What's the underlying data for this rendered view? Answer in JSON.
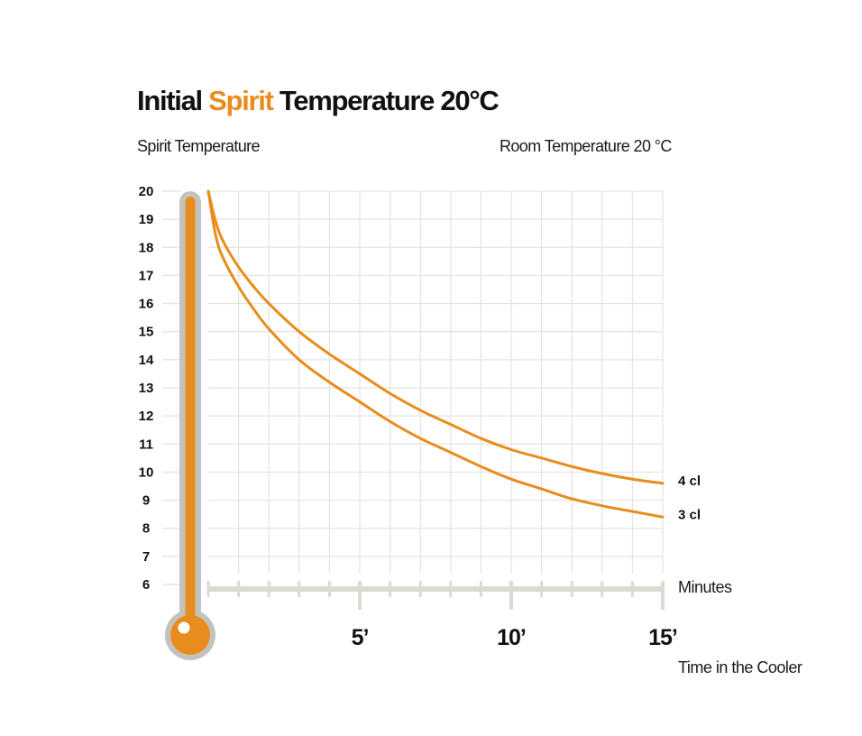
{
  "title": {
    "part1": "Initial ",
    "accent": "Spirit",
    "part2": " Temperature 20°C"
  },
  "header": {
    "left": "Spirit Temperature",
    "right": "Room Temperature 20 °C"
  },
  "colors": {
    "accent": "#e98c1e",
    "grid": "#e6e3dc",
    "axis": "#ddd9d3",
    "thermometer_tube": "#c4c2bf"
  },
  "chart_data": {
    "type": "line",
    "xlabel": "Time in the Cooler",
    "x_axis_unit": "Minutes",
    "ylabel": "Spirit Temperature",
    "reference_line": "Room Temperature 20 °C",
    "xlim": [
      0,
      15
    ],
    "ylim": [
      6,
      20
    ],
    "x_ticks": [
      {
        "value": 5,
        "label": "5’"
      },
      {
        "value": 10,
        "label": "10’"
      },
      {
        "value": 15,
        "label": "15’"
      }
    ],
    "y_ticks": [
      20,
      19,
      18,
      17,
      16,
      15,
      14,
      13,
      12,
      11,
      10,
      9,
      8,
      7,
      6
    ],
    "grid": true,
    "series": [
      {
        "name": "4 cl",
        "x": [
          0,
          0.25,
          0.5,
          1,
          1.5,
          2,
          3,
          4,
          5,
          6,
          7,
          8,
          9,
          10,
          11,
          12,
          13,
          14,
          15
        ],
        "y": [
          20,
          18.9,
          18.2,
          17.3,
          16.6,
          16.0,
          15.0,
          14.2,
          13.5,
          12.8,
          12.2,
          11.7,
          11.2,
          10.8,
          10.5,
          10.2,
          9.95,
          9.75,
          9.6
        ]
      },
      {
        "name": "3 cl",
        "x": [
          0,
          0.25,
          0.5,
          1,
          1.5,
          2,
          3,
          4,
          5,
          6,
          7,
          8,
          9,
          10,
          11,
          12,
          13,
          14,
          15
        ],
        "y": [
          20,
          18.4,
          17.6,
          16.6,
          15.8,
          15.1,
          14.0,
          13.2,
          12.5,
          11.8,
          11.2,
          10.7,
          10.2,
          9.75,
          9.4,
          9.05,
          8.8,
          8.6,
          8.4
        ]
      }
    ]
  }
}
